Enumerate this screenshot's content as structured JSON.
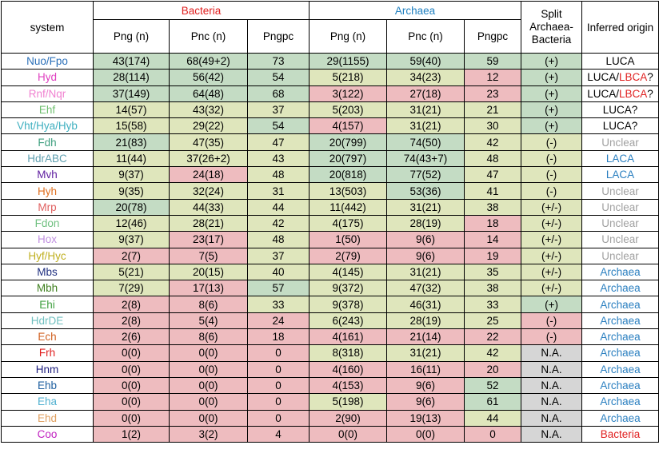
{
  "headers": {
    "system": "system",
    "bacteria": "Bacteria",
    "archaea": "Archaea",
    "split": [
      "Split",
      "Archaea-",
      "Bacteria"
    ],
    "origin": "Inferred origin",
    "png": "Png (n)",
    "pnc": "Pnc (n)",
    "pngpc": "Pngpc"
  },
  "colors": {
    "green": "#c4dcc4",
    "yellow": "#dfe6bc",
    "red": "#eebcbf",
    "gray": "#d6d6d6",
    "header_bacteria": "#e02020",
    "header_archaea": "#2080c0"
  },
  "rows": [
    {
      "system": [
        {
          "t": "Nuo",
          "c": "#2a6fb8"
        },
        {
          "t": "/",
          "c": "#2a6fb8"
        },
        {
          "t": "Fpo",
          "c": "#2a6fb8"
        }
      ],
      "b_png": "43(174)",
      "b_pnc": "68(49+2)",
      "b_pngpc": "73",
      "a_png": "29(1155)",
      "a_pnc": "59(40)",
      "a_pngpc": "59",
      "split": "(+)",
      "origin": [
        {
          "t": "LUCA",
          "c": "#000000"
        }
      ],
      "cls": [
        "g",
        "g",
        "g",
        "g",
        "g",
        "g",
        "g",
        "w"
      ]
    },
    {
      "system": [
        {
          "t": "Hyd",
          "c": "#e040c0"
        }
      ],
      "b_png": "28(114)",
      "b_pnc": "56(42)",
      "b_pngpc": "54",
      "a_png": "5(218)",
      "a_pnc": "34(23)",
      "a_pngpc": "12",
      "split": "(+)",
      "origin": [
        {
          "t": "LUCA/",
          "c": "#000000"
        },
        {
          "t": "LBCA",
          "c": "#e02020"
        },
        {
          "t": "?",
          "c": "#000000"
        }
      ],
      "cls": [
        "g",
        "g",
        "g",
        "y",
        "y",
        "r",
        "g",
        "w"
      ]
    },
    {
      "system": [
        {
          "t": "Rnf/Nqr",
          "c": "#f080d0"
        }
      ],
      "b_png": "37(149)",
      "b_pnc": "64(48)",
      "b_pngpc": "68",
      "a_png": "3(122)",
      "a_pnc": "27(18)",
      "a_pngpc": "23",
      "split": "(+)",
      "origin": [
        {
          "t": "LUCA/",
          "c": "#000000"
        },
        {
          "t": "LBCA",
          "c": "#e02020"
        },
        {
          "t": "?",
          "c": "#000000"
        }
      ],
      "cls": [
        "g",
        "g",
        "g",
        "r",
        "r",
        "r",
        "g",
        "w"
      ]
    },
    {
      "system": [
        {
          "t": "Ehf",
          "c": "#70c070"
        }
      ],
      "b_png": "14(57)",
      "b_pnc": "43(32)",
      "b_pngpc": "37",
      "a_png": "5(203)",
      "a_pnc": "31(21)",
      "a_pngpc": "21",
      "split": "(+)",
      "origin": [
        {
          "t": "LUCA?",
          "c": "#000000"
        }
      ],
      "cls": [
        "y",
        "y",
        "y",
        "y",
        "y",
        "y",
        "g",
        "w"
      ]
    },
    {
      "system": [
        {
          "t": "Vht/Hya/Hyb",
          "c": "#40b0c0"
        }
      ],
      "b_png": "15(58)",
      "b_pnc": "29(22)",
      "b_pngpc": "54",
      "a_png": "4(157)",
      "a_pnc": "31(21)",
      "a_pngpc": "30",
      "split": "(+)",
      "origin": [
        {
          "t": "LUCA?",
          "c": "#000000"
        }
      ],
      "cls": [
        "y",
        "y",
        "g",
        "r",
        "y",
        "y",
        "g",
        "w"
      ]
    },
    {
      "system": [
        {
          "t": "Fdh",
          "c": "#40a080"
        }
      ],
      "b_png": "21(83)",
      "b_pnc": "47(35)",
      "b_pngpc": "47",
      "a_png": "20(799)",
      "a_pnc": "74(50)",
      "a_pngpc": "42",
      "split": "(-)",
      "origin": [
        {
          "t": "Unclear",
          "c": "#a0a0a0"
        }
      ],
      "cls": [
        "g",
        "y",
        "y",
        "g",
        "g",
        "y",
        "y",
        "w"
      ]
    },
    {
      "system": [
        {
          "t": "HdrABC",
          "c": "#60a0b0"
        }
      ],
      "b_png": "11(44)",
      "b_pnc": "37(26+2)",
      "b_pngpc": "43",
      "a_png": "20(797)",
      "a_pnc": "74(43+7)",
      "a_pngpc": "48",
      "split": "(-)",
      "origin": [
        {
          "t": "LACA",
          "c": "#2a7fc0"
        }
      ],
      "cls": [
        "y",
        "y",
        "y",
        "g",
        "g",
        "y",
        "y",
        "w"
      ]
    },
    {
      "system": [
        {
          "t": "Mvh",
          "c": "#6020a0"
        }
      ],
      "b_png": "9(37)",
      "b_pnc": "24(18)",
      "b_pngpc": "48",
      "a_png": "20(818)",
      "a_pnc": "77(52)",
      "a_pngpc": "47",
      "split": "(-)",
      "origin": [
        {
          "t": "LACA",
          "c": "#2a7fc0"
        }
      ],
      "cls": [
        "y",
        "r",
        "y",
        "g",
        "g",
        "y",
        "y",
        "w"
      ]
    },
    {
      "system": [
        {
          "t": "Hyh",
          "c": "#e07020"
        }
      ],
      "b_png": "9(35)",
      "b_pnc": "32(24)",
      "b_pngpc": "31",
      "a_png": "13(503)",
      "a_pnc": "53(36)",
      "a_pngpc": "41",
      "split": "(-)",
      "origin": [
        {
          "t": "Unclear",
          "c": "#a0a0a0"
        }
      ],
      "cls": [
        "y",
        "y",
        "y",
        "y",
        "g",
        "y",
        "y",
        "w"
      ]
    },
    {
      "system": [
        {
          "t": "Mrp",
          "c": "#e06060"
        }
      ],
      "b_png": "20(78)",
      "b_pnc": "44(33)",
      "b_pngpc": "44",
      "a_png": "11(442)",
      "a_pnc": "31(21)",
      "a_pngpc": "38",
      "split": "(+/-)",
      "origin": [
        {
          "t": "Unclear",
          "c": "#a0a0a0"
        }
      ],
      "cls": [
        "g",
        "y",
        "y",
        "y",
        "y",
        "y",
        "y",
        "w"
      ]
    },
    {
      "system": [
        {
          "t": "Fdon",
          "c": "#70c080"
        }
      ],
      "b_png": "12(46)",
      "b_pnc": "28(21)",
      "b_pngpc": "42",
      "a_png": "4(175)",
      "a_pnc": "28(19)",
      "a_pngpc": "18",
      "split": "(+/-)",
      "origin": [
        {
          "t": "Unclear",
          "c": "#a0a0a0"
        }
      ],
      "cls": [
        "y",
        "y",
        "y",
        "y",
        "y",
        "r",
        "y",
        "w"
      ]
    },
    {
      "system": [
        {
          "t": "Hox",
          "c": "#c090e0"
        }
      ],
      "b_png": "9(37)",
      "b_pnc": "23(17)",
      "b_pngpc": "48",
      "a_png": "1(50)",
      "a_pnc": "9(6)",
      "a_pngpc": "14",
      "split": "(+/-)",
      "origin": [
        {
          "t": "Unclear",
          "c": "#a0a0a0"
        }
      ],
      "cls": [
        "y",
        "r",
        "y",
        "r",
        "r",
        "r",
        "y",
        "w"
      ]
    },
    {
      "system": [
        {
          "t": "Hyf/Hyc",
          "c": "#c0b020"
        }
      ],
      "b_png": "2(7)",
      "b_pnc": "7(5)",
      "b_pngpc": "37",
      "a_png": "2(79)",
      "a_pnc": "9(6)",
      "a_pngpc": "19",
      "split": "(+/-)",
      "origin": [
        {
          "t": "Unclear",
          "c": "#a0a0a0"
        }
      ],
      "cls": [
        "r",
        "r",
        "y",
        "r",
        "r",
        "r",
        "y",
        "w"
      ]
    },
    {
      "system": [
        {
          "t": "Mbs",
          "c": "#203080"
        }
      ],
      "b_png": "5(21)",
      "b_pnc": "20(15)",
      "b_pngpc": "40",
      "a_png": "4(145)",
      "a_pnc": "31(21)",
      "a_pngpc": "35",
      "split": "(+/-)",
      "origin": [
        {
          "t": "Archaea",
          "c": "#2a7fc0"
        }
      ],
      "cls": [
        "y",
        "y",
        "y",
        "y",
        "y",
        "y",
        "y",
        "w"
      ]
    },
    {
      "system": [
        {
          "t": "Mbh",
          "c": "#408020"
        }
      ],
      "b_png": "7(29)",
      "b_pnc": "17(13)",
      "b_pngpc": "57",
      "a_png": "9(372)",
      "a_pnc": "47(32)",
      "a_pngpc": "38",
      "split": "(+/-)",
      "origin": [
        {
          "t": "Archaea",
          "c": "#2a7fc0"
        }
      ],
      "cls": [
        "y",
        "r",
        "g",
        "y",
        "y",
        "y",
        "y",
        "w"
      ]
    },
    {
      "system": [
        {
          "t": "Ehi",
          "c": "#40a040"
        }
      ],
      "b_png": "2(8)",
      "b_pnc": "8(6)",
      "b_pngpc": "33",
      "a_png": "9(378)",
      "a_pnc": "46(31)",
      "a_pngpc": "33",
      "split": "(+)",
      "origin": [
        {
          "t": "Archaea",
          "c": "#2a7fc0"
        }
      ],
      "cls": [
        "r",
        "r",
        "y",
        "y",
        "y",
        "y",
        "g",
        "w"
      ]
    },
    {
      "system": [
        {
          "t": "HdrDE",
          "c": "#70c0c0"
        }
      ],
      "b_png": "2(8)",
      "b_pnc": "5(4)",
      "b_pngpc": "24",
      "a_png": "6(243)",
      "a_pnc": "28(19)",
      "a_pngpc": "25",
      "split": "(-)",
      "origin": [
        {
          "t": "Archaea",
          "c": "#2a7fc0"
        }
      ],
      "cls": [
        "r",
        "r",
        "r",
        "y",
        "y",
        "y",
        "r",
        "w"
      ]
    },
    {
      "system": [
        {
          "t": "Ech",
          "c": "#d06020"
        }
      ],
      "b_png": "2(6)",
      "b_pnc": "8(6)",
      "b_pngpc": "18",
      "a_png": "4(161)",
      "a_pnc": "21(14)",
      "a_pngpc": "22",
      "split": "(-)",
      "origin": [
        {
          "t": "Archaea",
          "c": "#2a7fc0"
        }
      ],
      "cls": [
        "r",
        "r",
        "r",
        "r",
        "r",
        "r",
        "r",
        "w"
      ]
    },
    {
      "system": [
        {
          "t": "Frh",
          "c": "#e02020"
        }
      ],
      "b_png": "0(0)",
      "b_pnc": "0(0)",
      "b_pngpc": "0",
      "a_png": "8(318)",
      "a_pnc": "31(21)",
      "a_pngpc": "42",
      "split": "N.A.",
      "origin": [
        {
          "t": "Archaea",
          "c": "#2a7fc0"
        }
      ],
      "cls": [
        "r",
        "r",
        "r",
        "y",
        "y",
        "y",
        "n",
        "w"
      ]
    },
    {
      "system": [
        {
          "t": "Hnm",
          "c": "#202080"
        }
      ],
      "b_png": "0(0)",
      "b_pnc": "0(0)",
      "b_pngpc": "0",
      "a_png": "4(160)",
      "a_pnc": "16(11)",
      "a_pngpc": "20",
      "split": "N.A.",
      "origin": [
        {
          "t": "Archaea",
          "c": "#2a7fc0"
        }
      ],
      "cls": [
        "r",
        "r",
        "r",
        "r",
        "r",
        "r",
        "n",
        "w"
      ]
    },
    {
      "system": [
        {
          "t": "Ehb",
          "c": "#2060a0"
        }
      ],
      "b_png": "0(0)",
      "b_pnc": "0(0)",
      "b_pngpc": "0",
      "a_png": "4(153)",
      "a_pnc": "9(6)",
      "a_pngpc": "52",
      "split": "N.A.",
      "origin": [
        {
          "t": "Archaea",
          "c": "#2a7fc0"
        }
      ],
      "cls": [
        "r",
        "r",
        "r",
        "r",
        "r",
        "g",
        "n",
        "w"
      ]
    },
    {
      "system": [
        {
          "t": "Eha",
          "c": "#50b0d0"
        }
      ],
      "b_png": "0(0)",
      "b_pnc": "0(0)",
      "b_pngpc": "0",
      "a_png": "5(198)",
      "a_pnc": "9(6)",
      "a_pngpc": "61",
      "split": "N.A.",
      "origin": [
        {
          "t": "Archaea",
          "c": "#2a7fc0"
        }
      ],
      "cls": [
        "r",
        "r",
        "r",
        "y",
        "r",
        "g",
        "n",
        "w"
      ]
    },
    {
      "system": [
        {
          "t": "Ehd",
          "c": "#e0a060"
        }
      ],
      "b_png": "0(0)",
      "b_pnc": "0(0)",
      "b_pngpc": "0",
      "a_png": "2(90)",
      "a_pnc": "19(13)",
      "a_pngpc": "44",
      "split": "N.A.",
      "origin": [
        {
          "t": "Archaea",
          "c": "#2a7fc0"
        }
      ],
      "cls": [
        "r",
        "r",
        "r",
        "r",
        "r",
        "y",
        "n",
        "w"
      ]
    },
    {
      "system": [
        {
          "t": "Coo",
          "c": "#c020c0"
        }
      ],
      "b_png": "1(2)",
      "b_pnc": "3(2)",
      "b_pngpc": "4",
      "a_png": "0(0)",
      "a_pnc": "0(0)",
      "a_pngpc": "0",
      "split": "N.A.",
      "origin": [
        {
          "t": "Bacteria",
          "c": "#e02020"
        }
      ],
      "cls": [
        "r",
        "r",
        "r",
        "r",
        "r",
        "r",
        "n",
        "w"
      ]
    }
  ]
}
